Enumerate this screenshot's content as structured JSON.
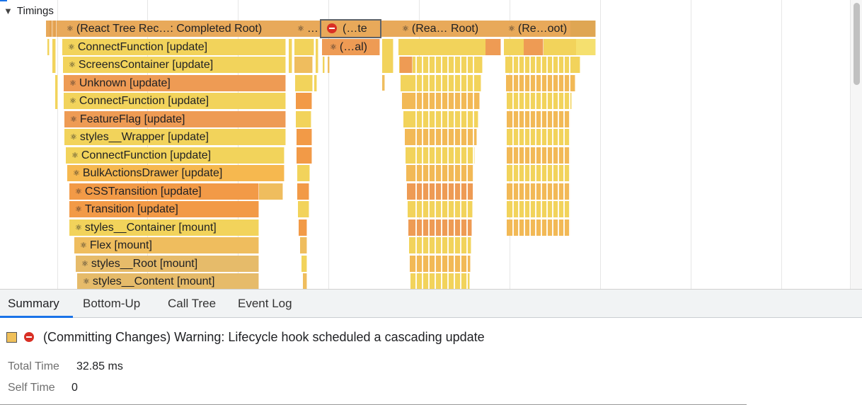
{
  "timeline": {
    "section_title": "Timings",
    "top_row": [
      {
        "label": "(React Tree Rec…: Completed Root)",
        "color": "#e8a95a"
      },
      {
        "label": "…",
        "color": "#e8a95a"
      },
      {
        "label": "(…te",
        "color": "#e8a95a",
        "warning": true,
        "selected": true
      },
      {
        "label": "(Rea… Root)",
        "color": "#e8a95a"
      },
      {
        "label": "(Re…oot)",
        "color": "#e8a95a"
      }
    ],
    "second_row_side": {
      "label": "(…al)"
    },
    "stack": [
      {
        "label": "ConnectFunction [update]",
        "color": "#f2d35b"
      },
      {
        "label": "ScreensContainer [update]",
        "color": "#f2d35b"
      },
      {
        "label": "Unknown [update]",
        "color": "#ee9b54"
      },
      {
        "label": "ConnectFunction [update]",
        "color": "#f2d35b"
      },
      {
        "label": "FeatureFlag [update]",
        "color": "#ee9b54"
      },
      {
        "label": "styles__Wrapper [update]",
        "color": "#f2d35b"
      },
      {
        "label": "ConnectFunction [update]",
        "color": "#f2d35b"
      },
      {
        "label": "BulkActionsDrawer [update]",
        "color": "#f6b84f"
      },
      {
        "label": "CSSTransition [update]",
        "color": "#f29a47"
      },
      {
        "label": "Transition [update]",
        "color": "#f29a47"
      },
      {
        "label": "styles__Container [mount]",
        "color": "#f2d35b"
      },
      {
        "label": "Flex [mount]",
        "color": "#efbd5e"
      },
      {
        "label": "styles__Root [mount]",
        "color": "#e6bb6a"
      },
      {
        "label": "styles__Content [mount]",
        "color": "#e6bb6a"
      }
    ]
  },
  "tabs": [
    {
      "label": "Summary",
      "active": true
    },
    {
      "label": "Bottom-Up",
      "active": false
    },
    {
      "label": "Call Tree",
      "active": false
    },
    {
      "label": "Event Log",
      "active": false
    }
  ],
  "summary": {
    "title": "(Committing Changes) Warning: Lifecycle hook scheduled a cascading update",
    "swatch_color": "#f0c05a",
    "total_time_label": "Total Time",
    "total_time_value": "32.85 ms",
    "self_time_label": "Self Time",
    "self_time_value": "0"
  }
}
